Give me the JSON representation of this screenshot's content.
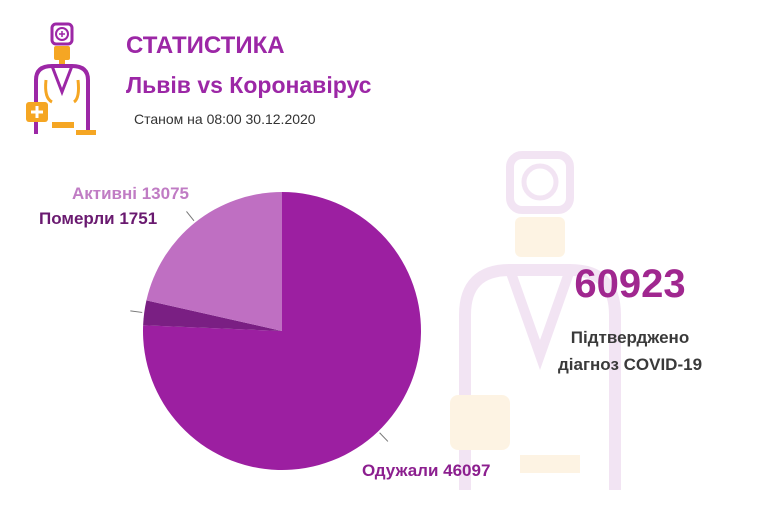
{
  "header": {
    "title": "СТАТИСТИКА",
    "subtitle": "Львів vs Коронавірус",
    "date": "Станом на 08:00 30.12.2020"
  },
  "summary": {
    "total": "60923",
    "label_line1": "Підтверджено",
    "label_line2": "діагноз COVID-19"
  },
  "colors": {
    "recovered": "#9c1fa1",
    "deceased": "#7a1f83",
    "active": "#bf6fc2",
    "accent": "#9c27a6",
    "logo_orange": "#f5a623"
  },
  "icons": {
    "logo": "doctor-icon",
    "watermark": "doctor-icon"
  },
  "chart_data": {
    "type": "pie",
    "slices": [
      {
        "label": "Одужали",
        "value": 46097,
        "display": "Одужали 46097",
        "color": "#9c1fa1",
        "label_color": "#8c1f8f"
      },
      {
        "label": "Померли",
        "value": 1751,
        "display": "Померли 1751",
        "color": "#7a1f83",
        "label_color": "#6a1a70"
      },
      {
        "label": "Активні",
        "value": 13075,
        "display": "Активні 13075",
        "color": "#bf6fc2",
        "label_color": "#c07cc4"
      }
    ]
  }
}
